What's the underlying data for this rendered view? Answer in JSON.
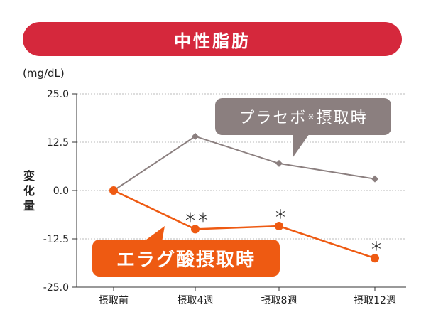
{
  "title": "中性脂肪",
  "unit": "(mg/dL)",
  "ylabel": "変化量",
  "chart_data": {
    "type": "line",
    "categories": [
      "摂取前",
      "摂取4週",
      "摂取8週",
      "摂取12週"
    ],
    "ylim": [
      -25.0,
      25.0
    ],
    "yticks": [
      "25.0",
      "12.5",
      "0.0",
      "-12.5",
      "-25.0"
    ],
    "ytick_values": [
      25.0,
      12.5,
      0.0,
      -12.5,
      -25.0
    ],
    "grid": true,
    "series": [
      {
        "name": "プラセボ※摂取時",
        "values": [
          0.0,
          14.0,
          7.0,
          3.0
        ],
        "color": "#8b7f7f",
        "marker": "diamond"
      },
      {
        "name": "エラグ酸摂取時",
        "values": [
          0.0,
          -10.0,
          -9.2,
          -17.5
        ],
        "color": "#ee5a12",
        "marker": "circle"
      }
    ],
    "annotations": [
      {
        "text": "＊＊",
        "category_index": 1
      },
      {
        "text": "＊",
        "category_index": 2
      },
      {
        "text": "＊",
        "category_index": 3
      }
    ]
  },
  "legend": {
    "placebo_main": "プラセボ",
    "placebo_mark": "※",
    "placebo_rest": "摂取時",
    "elag": "エラグ酸摂取時"
  },
  "colors": {
    "banner": "#d5283c",
    "placebo": "#8b7f7f",
    "elag": "#ee5a12",
    "grid": "#bbbbbb"
  }
}
